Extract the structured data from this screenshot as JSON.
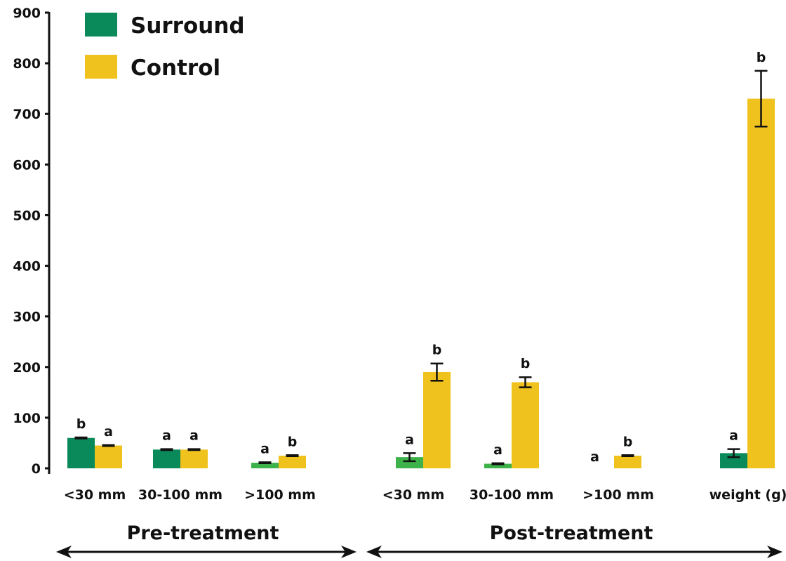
{
  "chart_data": {
    "type": "bar",
    "ylim": [
      0,
      900
    ],
    "yticks": [
      "0",
      "100",
      "200",
      "300",
      "400",
      "500",
      "600",
      "700",
      "800",
      "900"
    ],
    "legend": {
      "position": "top-left",
      "entries": [
        {
          "label": "Surround",
          "color": "#0a8a5a"
        },
        {
          "label": "Control",
          "color": "#f0c21d"
        }
      ]
    },
    "categories": [
      "<30 mm",
      "30-100 mm",
      ">100 mm",
      "<30 mm",
      "30-100 mm",
      ">100 mm",
      "weight (g)"
    ],
    "groups": [
      {
        "label": "Pre-treatment",
        "category_indices": [
          0,
          1,
          2
        ]
      },
      {
        "label": "Post-treatment",
        "category_indices": [
          3,
          4,
          5,
          6
        ]
      }
    ],
    "series": [
      {
        "name": "Surround",
        "color": "#0a8a5a",
        "light_color": "#3db24a",
        "light_indices": [
          2,
          3,
          4
        ],
        "values": [
          60,
          37,
          11,
          22,
          9,
          0,
          30
        ],
        "errors": [
          1,
          1,
          1,
          8,
          1,
          0,
          8
        ],
        "significance": [
          "b",
          "a",
          "a",
          "a",
          "a",
          "a",
          "a"
        ]
      },
      {
        "name": "Control",
        "color": "#f0c21d",
        "values": [
          45,
          37,
          25,
          190,
          170,
          25,
          730
        ],
        "errors": [
          1,
          1,
          1,
          17,
          10,
          1,
          55
        ],
        "significance": [
          "a",
          "a",
          "b",
          "b",
          "b",
          "b",
          "b"
        ]
      }
    ]
  }
}
